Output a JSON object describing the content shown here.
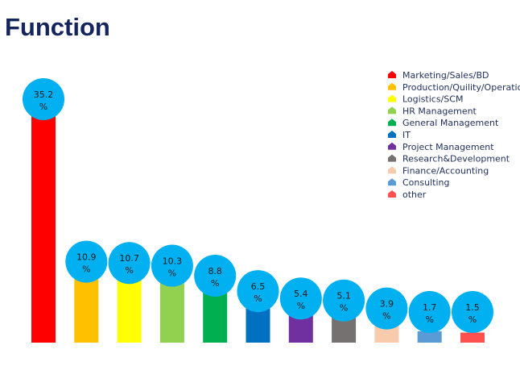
{
  "title": "Function",
  "chart_data": {
    "type": "bar",
    "title": "Function",
    "xlabel": "",
    "ylabel": "",
    "ylim": [
      0,
      35.2
    ],
    "grid": false,
    "legend_position": "top-right",
    "value_suffix": "%",
    "categories": [
      "Marketing/Sales/BD",
      "Production/Quility/Operations",
      "Logistics/SCM",
      "HR Management",
      "General Management",
      "IT",
      "Project Management",
      "Research&Development",
      "Finance/Accounting",
      "Consulting",
      "other"
    ],
    "values": [
      35.2,
      10.9,
      10.7,
      10.3,
      8.8,
      6.5,
      5.4,
      5.1,
      3.9,
      1.7,
      1.5
    ],
    "value_labels": [
      "35.2",
      "10.9",
      "10.7",
      "10.3",
      "8.8",
      "6.5",
      "5.4",
      "5.1",
      "3.9",
      "1.7",
      "1.5"
    ],
    "colors": [
      "#ff0000",
      "#ffc000",
      "#ffff00",
      "#92d050",
      "#00b050",
      "#0070c0",
      "#7030a0",
      "#767171",
      "#f8cbad",
      "#5b9bd5",
      "#ff5050"
    ],
    "label_bubble_color": "#00b0f0"
  }
}
